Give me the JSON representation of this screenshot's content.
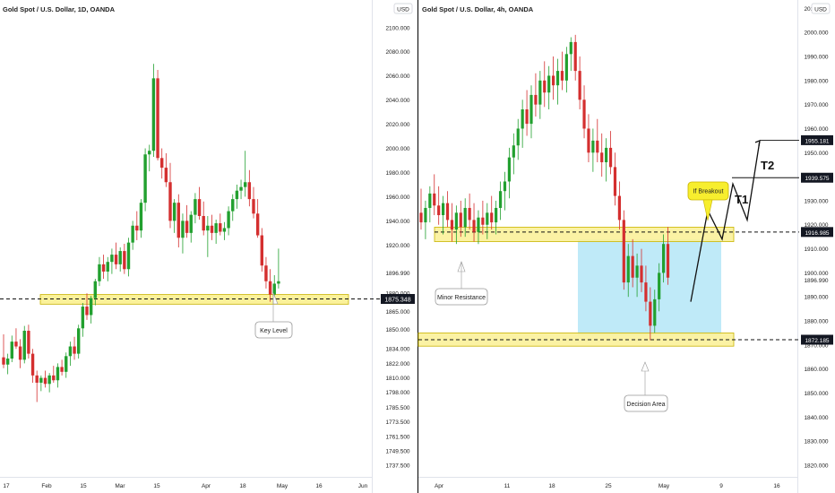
{
  "colors": {
    "up": "#22a02f",
    "down": "#d42f2f",
    "zone_fill": "#fbf19a",
    "zone_stroke": "#c9b400",
    "decision_fill": "#bfeaf8",
    "callout_fill": "#f7ee2e",
    "axis_text": "#222222",
    "badge_bg": "#131722"
  },
  "chart_data": [
    {
      "type": "candlestick",
      "title": "Gold Spot / U.S. Dollar, 1D, OANDA",
      "currency": "USD",
      "ylim": [
        1731,
        2108
      ],
      "y_ticks": [
        "2100.000",
        "2080.000",
        "2060.000",
        "2040.000",
        "2020.000",
        "2000.000",
        "1980.000",
        "1960.000",
        "1940.000",
        "1920.000",
        "1896.990",
        "1880.000",
        "1865.000",
        "1850.000",
        "1834.000",
        "1822.000",
        "1810.000",
        "1798.000",
        "1785.500",
        "1773.500",
        "1761.500",
        "1749.500",
        "1737.500"
      ],
      "x_ticks": [
        "17",
        "Feb",
        "15",
        "Mar",
        "15",
        "Apr",
        "18",
        "May",
        "16",
        "Jun"
      ],
      "price_labels": [
        "1875.348"
      ],
      "annotations": [
        "Key Level"
      ],
      "key_zone": [
        1871,
        1879
      ],
      "key_line": 1875.348,
      "candles": [
        {
          "o": 1827,
          "h": 1846,
          "l": 1818,
          "c": 1821
        },
        {
          "o": 1821,
          "h": 1830,
          "l": 1813,
          "c": 1826
        },
        {
          "o": 1826,
          "h": 1845,
          "l": 1823,
          "c": 1840
        },
        {
          "o": 1840,
          "h": 1851,
          "l": 1834,
          "c": 1836
        },
        {
          "o": 1836,
          "h": 1842,
          "l": 1818,
          "c": 1825
        },
        {
          "o": 1825,
          "h": 1853,
          "l": 1822,
          "c": 1849
        },
        {
          "o": 1849,
          "h": 1854,
          "l": 1826,
          "c": 1830
        },
        {
          "o": 1830,
          "h": 1834,
          "l": 1806,
          "c": 1812
        },
        {
          "o": 1812,
          "h": 1816,
          "l": 1790,
          "c": 1806
        },
        {
          "o": 1806,
          "h": 1812,
          "l": 1799,
          "c": 1810
        },
        {
          "o": 1810,
          "h": 1816,
          "l": 1802,
          "c": 1805
        },
        {
          "o": 1805,
          "h": 1814,
          "l": 1798,
          "c": 1812
        },
        {
          "o": 1812,
          "h": 1820,
          "l": 1806,
          "c": 1808
        },
        {
          "o": 1808,
          "h": 1822,
          "l": 1802,
          "c": 1819
        },
        {
          "o": 1819,
          "h": 1825,
          "l": 1812,
          "c": 1815
        },
        {
          "o": 1815,
          "h": 1831,
          "l": 1810,
          "c": 1828
        },
        {
          "o": 1828,
          "h": 1840,
          "l": 1820,
          "c": 1836
        },
        {
          "o": 1836,
          "h": 1844,
          "l": 1825,
          "c": 1830
        },
        {
          "o": 1830,
          "h": 1854,
          "l": 1826,
          "c": 1851
        },
        {
          "o": 1851,
          "h": 1872,
          "l": 1844,
          "c": 1869
        },
        {
          "o": 1869,
          "h": 1880,
          "l": 1858,
          "c": 1862
        },
        {
          "o": 1862,
          "h": 1878,
          "l": 1855,
          "c": 1876
        },
        {
          "o": 1876,
          "h": 1892,
          "l": 1870,
          "c": 1890
        },
        {
          "o": 1890,
          "h": 1910,
          "l": 1886,
          "c": 1904
        },
        {
          "o": 1904,
          "h": 1912,
          "l": 1892,
          "c": 1898
        },
        {
          "o": 1898,
          "h": 1910,
          "l": 1890,
          "c": 1906
        },
        {
          "o": 1906,
          "h": 1917,
          "l": 1896,
          "c": 1912
        },
        {
          "o": 1912,
          "h": 1922,
          "l": 1900,
          "c": 1904
        },
        {
          "o": 1904,
          "h": 1918,
          "l": 1898,
          "c": 1915
        },
        {
          "o": 1915,
          "h": 1921,
          "l": 1896,
          "c": 1900
        },
        {
          "o": 1900,
          "h": 1926,
          "l": 1894,
          "c": 1922
        },
        {
          "o": 1922,
          "h": 1940,
          "l": 1916,
          "c": 1936
        },
        {
          "o": 1936,
          "h": 1948,
          "l": 1924,
          "c": 1932
        },
        {
          "o": 1932,
          "h": 1958,
          "l": 1926,
          "c": 1955
        },
        {
          "o": 1955,
          "h": 2000,
          "l": 1948,
          "c": 1995
        },
        {
          "o": 1995,
          "h": 2003,
          "l": 1981,
          "c": 1998
        },
        {
          "o": 1998,
          "h": 2070,
          "l": 1993,
          "c": 2058
        },
        {
          "o": 2058,
          "h": 2065,
          "l": 1990,
          "c": 1992
        },
        {
          "o": 1992,
          "h": 2000,
          "l": 1975,
          "c": 1984
        },
        {
          "o": 1984,
          "h": 1996,
          "l": 1968,
          "c": 1972
        },
        {
          "o": 1972,
          "h": 1988,
          "l": 1934,
          "c": 1940
        },
        {
          "o": 1940,
          "h": 1958,
          "l": 1930,
          "c": 1955
        },
        {
          "o": 1955,
          "h": 1962,
          "l": 1918,
          "c": 1926
        },
        {
          "o": 1926,
          "h": 1946,
          "l": 1913,
          "c": 1940
        },
        {
          "o": 1940,
          "h": 1953,
          "l": 1926,
          "c": 1930
        },
        {
          "o": 1930,
          "h": 1948,
          "l": 1922,
          "c": 1945
        },
        {
          "o": 1945,
          "h": 1963,
          "l": 1938,
          "c": 1958
        },
        {
          "o": 1958,
          "h": 1968,
          "l": 1941,
          "c": 1944
        },
        {
          "o": 1944,
          "h": 1956,
          "l": 1928,
          "c": 1932
        },
        {
          "o": 1932,
          "h": 1944,
          "l": 1910,
          "c": 1936
        },
        {
          "o": 1936,
          "h": 1945,
          "l": 1924,
          "c": 1930
        },
        {
          "o": 1930,
          "h": 1941,
          "l": 1921,
          "c": 1938
        },
        {
          "o": 1938,
          "h": 1946,
          "l": 1928,
          "c": 1931
        },
        {
          "o": 1931,
          "h": 1939,
          "l": 1924,
          "c": 1934
        },
        {
          "o": 1934,
          "h": 1952,
          "l": 1928,
          "c": 1948
        },
        {
          "o": 1948,
          "h": 1962,
          "l": 1940,
          "c": 1958
        },
        {
          "o": 1958,
          "h": 1970,
          "l": 1950,
          "c": 1965
        },
        {
          "o": 1965,
          "h": 1974,
          "l": 1958,
          "c": 1968
        },
        {
          "o": 1968,
          "h": 1998,
          "l": 1960,
          "c": 1972
        },
        {
          "o": 1972,
          "h": 1982,
          "l": 1952,
          "c": 1958
        },
        {
          "o": 1958,
          "h": 1968,
          "l": 1942,
          "c": 1946
        },
        {
          "o": 1946,
          "h": 1958,
          "l": 1926,
          "c": 1928
        },
        {
          "o": 1928,
          "h": 1934,
          "l": 1898,
          "c": 1903
        },
        {
          "o": 1903,
          "h": 1910,
          "l": 1884,
          "c": 1890
        },
        {
          "o": 1890,
          "h": 1900,
          "l": 1873,
          "c": 1879
        },
        {
          "o": 1879,
          "h": 1895,
          "l": 1874,
          "c": 1888
        },
        {
          "o": 1888,
          "h": 1917,
          "l": 1884,
          "c": 1890
        }
      ]
    },
    {
      "type": "candlestick",
      "title": "Gold Spot / U.S. Dollar, 4h, OANDA",
      "currency": "USD",
      "ylim": [
        1817,
        2012
      ],
      "y_ticks": [
        "2010.000",
        "2000.000",
        "1990.000",
        "1980.000",
        "1970.000",
        "1960.000",
        "1950.000",
        "1940.000",
        "1930.000",
        "1920.000",
        "1910.000",
        "1900.000",
        "1896.990",
        "1890.000",
        "1880.000",
        "1870.000",
        "1860.000",
        "1850.000",
        "1840.000",
        "1830.000",
        "1820.000"
      ],
      "x_ticks": [
        "Apr",
        "11",
        "18",
        "25",
        "May",
        "9",
        "16"
      ],
      "price_labels": [
        "1955.181",
        "1939.575",
        "1916.985",
        "1872.185"
      ],
      "annotations": [
        "Minor Resistance",
        "Decision Area",
        "If Breakout",
        "T1",
        "T2"
      ],
      "zones": [
        [
          1913,
          1919
        ],
        [
          1869.5,
          1875
        ]
      ],
      "decision_box": [
        1874,
        1914
      ],
      "dashed_lines": [
        1916.985,
        1872.185
      ],
      "target_lines": [
        1955.181,
        1939.575
      ],
      "projection": [
        [
          1888
        ],
        [
          1926
        ],
        [
          1914
        ],
        [
          1937
        ],
        [
          1922
        ],
        [
          1955
        ]
      ],
      "candles": [
        {
          "o": 1925,
          "h": 1935,
          "l": 1918,
          "c": 1921
        },
        {
          "o": 1921,
          "h": 1930,
          "l": 1914,
          "c": 1927
        },
        {
          "o": 1927,
          "h": 1936,
          "l": 1921,
          "c": 1933
        },
        {
          "o": 1933,
          "h": 1941,
          "l": 1924,
          "c": 1928
        },
        {
          "o": 1928,
          "h": 1936,
          "l": 1920,
          "c": 1924
        },
        {
          "o": 1924,
          "h": 1932,
          "l": 1916,
          "c": 1929
        },
        {
          "o": 1929,
          "h": 1934,
          "l": 1919,
          "c": 1922
        },
        {
          "o": 1922,
          "h": 1929,
          "l": 1913,
          "c": 1918
        },
        {
          "o": 1918,
          "h": 1928,
          "l": 1912,
          "c": 1925
        },
        {
          "o": 1925,
          "h": 1930,
          "l": 1915,
          "c": 1919
        },
        {
          "o": 1919,
          "h": 1931,
          "l": 1915,
          "c": 1927
        },
        {
          "o": 1927,
          "h": 1933,
          "l": 1918,
          "c": 1922
        },
        {
          "o": 1922,
          "h": 1929,
          "l": 1913,
          "c": 1917
        },
        {
          "o": 1917,
          "h": 1926,
          "l": 1912,
          "c": 1923
        },
        {
          "o": 1923,
          "h": 1930,
          "l": 1916,
          "c": 1920
        },
        {
          "o": 1920,
          "h": 1929,
          "l": 1914,
          "c": 1925
        },
        {
          "o": 1925,
          "h": 1932,
          "l": 1918,
          "c": 1921
        },
        {
          "o": 1921,
          "h": 1930,
          "l": 1916,
          "c": 1927
        },
        {
          "o": 1927,
          "h": 1938,
          "l": 1922,
          "c": 1934
        },
        {
          "o": 1934,
          "h": 1942,
          "l": 1926,
          "c": 1938
        },
        {
          "o": 1938,
          "h": 1952,
          "l": 1931,
          "c": 1948
        },
        {
          "o": 1948,
          "h": 1958,
          "l": 1941,
          "c": 1953
        },
        {
          "o": 1953,
          "h": 1964,
          "l": 1947,
          "c": 1960
        },
        {
          "o": 1960,
          "h": 1972,
          "l": 1952,
          "c": 1968
        },
        {
          "o": 1968,
          "h": 1976,
          "l": 1957,
          "c": 1962
        },
        {
          "o": 1962,
          "h": 1978,
          "l": 1956,
          "c": 1974
        },
        {
          "o": 1974,
          "h": 1983,
          "l": 1965,
          "c": 1970
        },
        {
          "o": 1970,
          "h": 1984,
          "l": 1964,
          "c": 1980
        },
        {
          "o": 1980,
          "h": 1988,
          "l": 1969,
          "c": 1975
        },
        {
          "o": 1975,
          "h": 1986,
          "l": 1968,
          "c": 1982
        },
        {
          "o": 1982,
          "h": 1990,
          "l": 1972,
          "c": 1978
        },
        {
          "o": 1978,
          "h": 1989,
          "l": 1970,
          "c": 1984
        },
        {
          "o": 1984,
          "h": 1992,
          "l": 1976,
          "c": 1980
        },
        {
          "o": 1980,
          "h": 1994,
          "l": 1975,
          "c": 1991
        },
        {
          "o": 1991,
          "h": 1998,
          "l": 1984,
          "c": 1996
        },
        {
          "o": 1996,
          "h": 1999,
          "l": 1980,
          "c": 1984
        },
        {
          "o": 1984,
          "h": 1990,
          "l": 1968,
          "c": 1972
        },
        {
          "o": 1972,
          "h": 1978,
          "l": 1956,
          "c": 1960
        },
        {
          "o": 1960,
          "h": 1966,
          "l": 1946,
          "c": 1950
        },
        {
          "o": 1950,
          "h": 1960,
          "l": 1942,
          "c": 1955
        },
        {
          "o": 1955,
          "h": 1964,
          "l": 1946,
          "c": 1950
        },
        {
          "o": 1950,
          "h": 1958,
          "l": 1940,
          "c": 1946
        },
        {
          "o": 1946,
          "h": 1956,
          "l": 1938,
          "c": 1952
        },
        {
          "o": 1952,
          "h": 1959,
          "l": 1941,
          "c": 1944
        },
        {
          "o": 1944,
          "h": 1950,
          "l": 1928,
          "c": 1932
        },
        {
          "o": 1932,
          "h": 1938,
          "l": 1918,
          "c": 1922
        },
        {
          "o": 1922,
          "h": 1926,
          "l": 1893,
          "c": 1896
        },
        {
          "o": 1896,
          "h": 1912,
          "l": 1890,
          "c": 1907
        },
        {
          "o": 1907,
          "h": 1914,
          "l": 1894,
          "c": 1898
        },
        {
          "o": 1898,
          "h": 1908,
          "l": 1890,
          "c": 1903
        },
        {
          "o": 1903,
          "h": 1910,
          "l": 1892,
          "c": 1896
        },
        {
          "o": 1896,
          "h": 1903,
          "l": 1884,
          "c": 1888
        },
        {
          "o": 1888,
          "h": 1894,
          "l": 1872,
          "c": 1878
        },
        {
          "o": 1878,
          "h": 1893,
          "l": 1875,
          "c": 1889
        },
        {
          "o": 1889,
          "h": 1904,
          "l": 1884,
          "c": 1900
        },
        {
          "o": 1900,
          "h": 1916,
          "l": 1896,
          "c": 1912
        },
        {
          "o": 1912,
          "h": 1919,
          "l": 1895,
          "c": 1898
        }
      ]
    }
  ]
}
